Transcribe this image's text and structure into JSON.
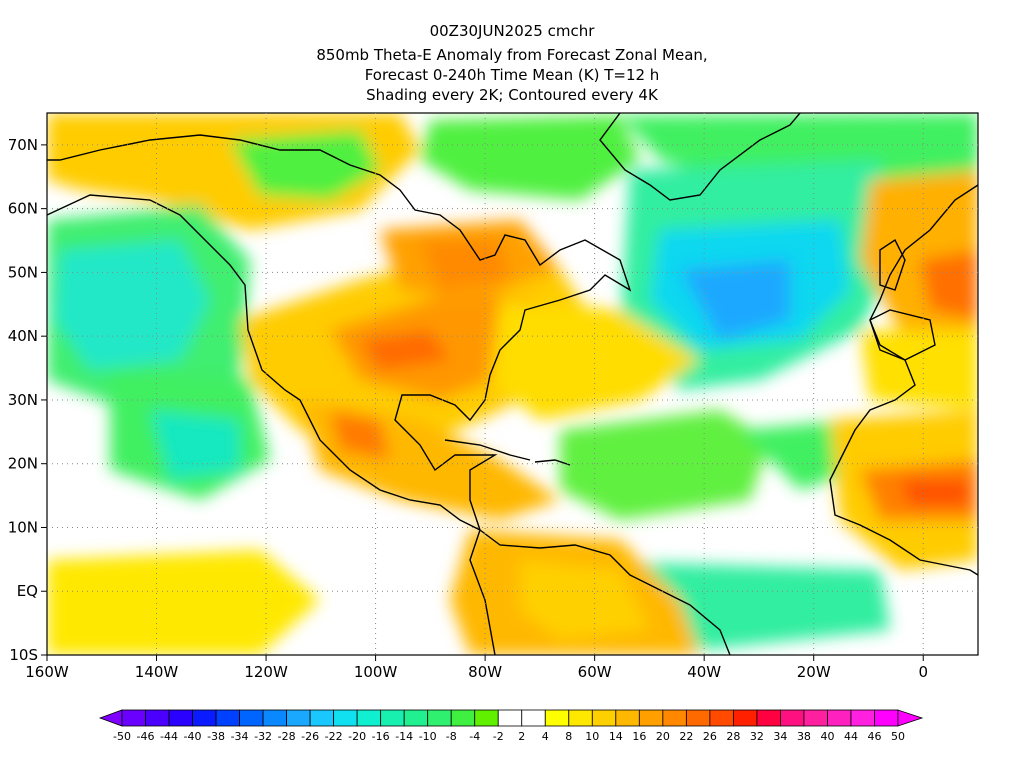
{
  "title_lines": [
    "00Z30JUN2025 cmchr",
    "850mb Theta-E Anomaly from Forecast Zonal Mean,",
    "Forecast 0-240h Time Mean (K) T=12 h",
    "Shading every 2K; Contoured every 4K"
  ],
  "map": {
    "lon_range": [
      -160,
      10
    ],
    "lat_range": [
      -10,
      75
    ],
    "lon_ticks": [
      "160W",
      "140W",
      "120W",
      "100W",
      "80W",
      "60W",
      "40W",
      "20W",
      "0"
    ],
    "lat_ticks": [
      "10S",
      "EQ",
      "10N",
      "20N",
      "30N",
      "40N",
      "50N",
      "60N",
      "70N"
    ],
    "grid": "dotted"
  },
  "colorbar": {
    "labels": [
      "-50",
      "-46",
      "-44",
      "-40",
      "-38",
      "-34",
      "-32",
      "-28",
      "-26",
      "-22",
      "-20",
      "-16",
      "-14",
      "-10",
      "-8",
      "-4",
      "-2",
      "2",
      "4",
      "8",
      "10",
      "14",
      "16",
      "20",
      "22",
      "26",
      "28",
      "32",
      "34",
      "38",
      "40",
      "44",
      "46",
      "50"
    ],
    "colors": [
      "#8000ff",
      "#6a00ff",
      "#4b00ff",
      "#2a00ff",
      "#0a1cff",
      "#0040ff",
      "#0064ff",
      "#0a88ff",
      "#1aa8ff",
      "#1ac8ff",
      "#10e0f0",
      "#10f0d0",
      "#18f0b0",
      "#20f090",
      "#30f070",
      "#40f040",
      "#60f000",
      "#ffffff",
      "#ffffff",
      "#ffff00",
      "#ffe800",
      "#ffd000",
      "#ffb800",
      "#ffa000",
      "#ff8800",
      "#ff6a00",
      "#ff4a00",
      "#ff2000",
      "#ff0040",
      "#ff1080",
      "#ff20a0",
      "#ff20c0",
      "#ff20e0",
      "#ff00ff",
      "#ff00ff"
    ]
  }
}
